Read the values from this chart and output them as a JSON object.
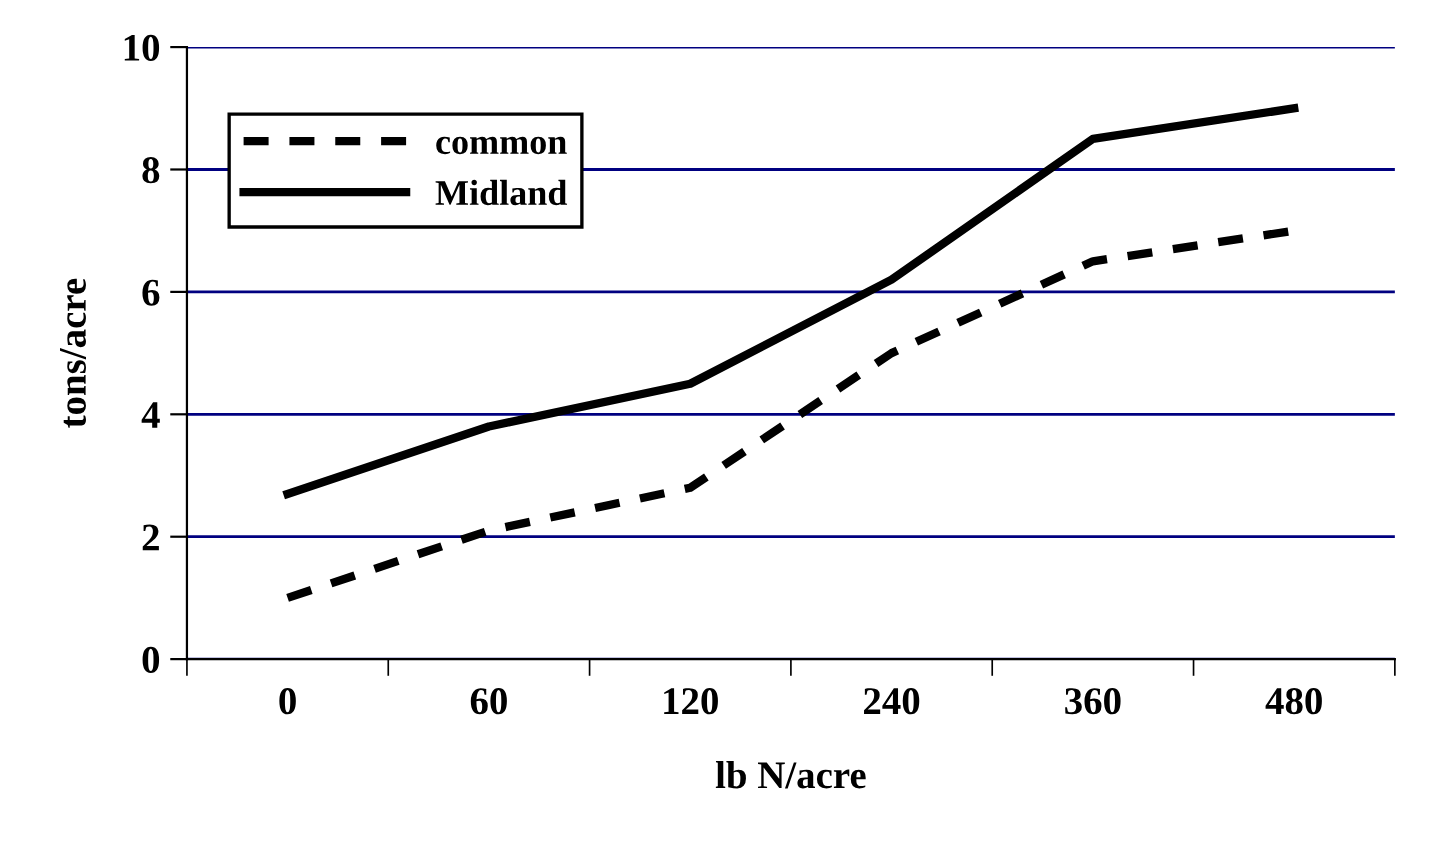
{
  "chart_data": {
    "type": "line",
    "xlabel": "lb N/acre",
    "ylabel": "tons/acre",
    "categories": [
      "0",
      "60",
      "120",
      "240",
      "360",
      "480"
    ],
    "series": [
      {
        "name": "common",
        "color": "#000000",
        "line_style": "dashed",
        "values": [
          1.0,
          2.1,
          2.8,
          5.0,
          6.5,
          7.0
        ]
      },
      {
        "name": "Midland",
        "color": "#000000",
        "line_style": "solid",
        "values": [
          2.7,
          3.8,
          4.5,
          6.2,
          8.5,
          9.0
        ]
      }
    ],
    "ylim": [
      0,
      10
    ],
    "yticks": [
      0,
      2,
      4,
      6,
      8,
      10
    ],
    "grid": "y",
    "legend": "top left",
    "marker": "none"
  }
}
